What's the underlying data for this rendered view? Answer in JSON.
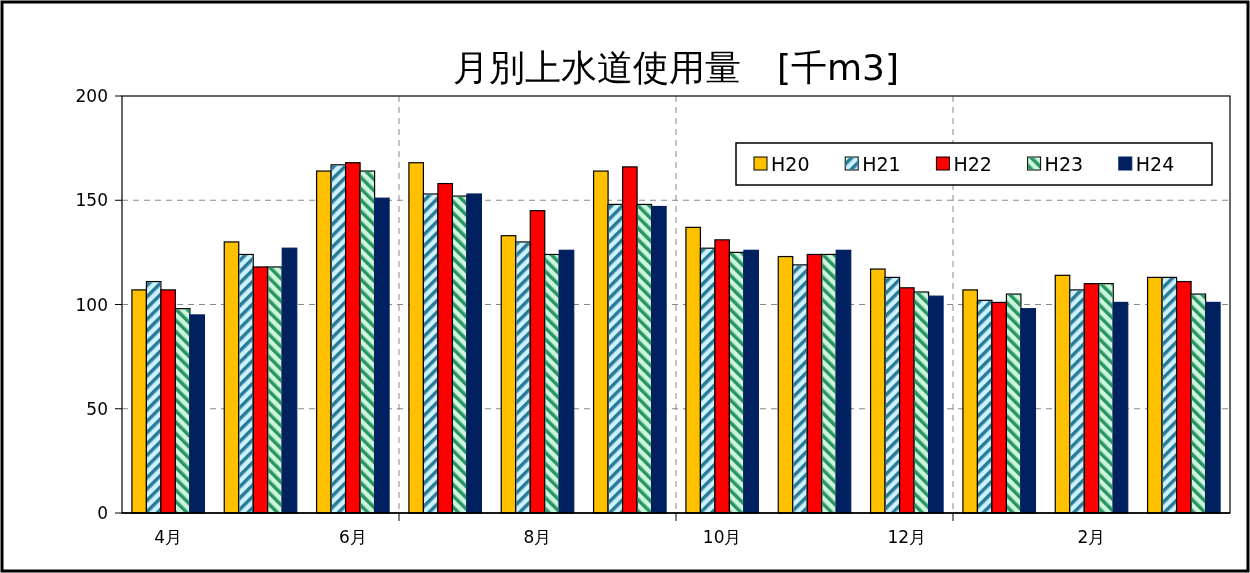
{
  "chart_data": {
    "type": "bar",
    "title": "月別上水道使用量　[千m3]",
    "categories": [
      "4月",
      null,
      "6月",
      null,
      "8月",
      null,
      "10月",
      null,
      "12月",
      null,
      "2月",
      null
    ],
    "series": [
      {
        "name": "H20",
        "color": "#ffc000",
        "values": [
          107,
          130,
          164,
          168,
          133,
          164,
          137,
          123,
          117,
          107,
          114,
          113
        ]
      },
      {
        "name": "H21",
        "color": "#ccf2ff",
        "values": [
          111,
          124,
          167,
          153,
          130,
          148,
          127,
          119,
          113,
          102,
          107,
          113
        ]
      },
      {
        "name": "H22",
        "color": "#ff0000",
        "values": [
          107,
          118,
          168,
          158,
          145,
          166,
          131,
          124,
          108,
          101,
          110,
          111
        ]
      },
      {
        "name": "H23",
        "color": "#ccf5e0",
        "values": [
          98,
          118,
          164,
          152,
          124,
          148,
          125,
          124,
          106,
          105,
          110,
          105
        ]
      },
      {
        "name": "H24",
        "color": "#002060",
        "values": [
          95,
          127,
          151,
          153,
          126,
          147,
          126,
          126,
          104,
          98,
          101,
          101
        ]
      }
    ],
    "ylim": [
      0,
      200
    ],
    "yticks": [
      0,
      50,
      100,
      150,
      200
    ],
    "grid": true,
    "legend": "top right"
  }
}
